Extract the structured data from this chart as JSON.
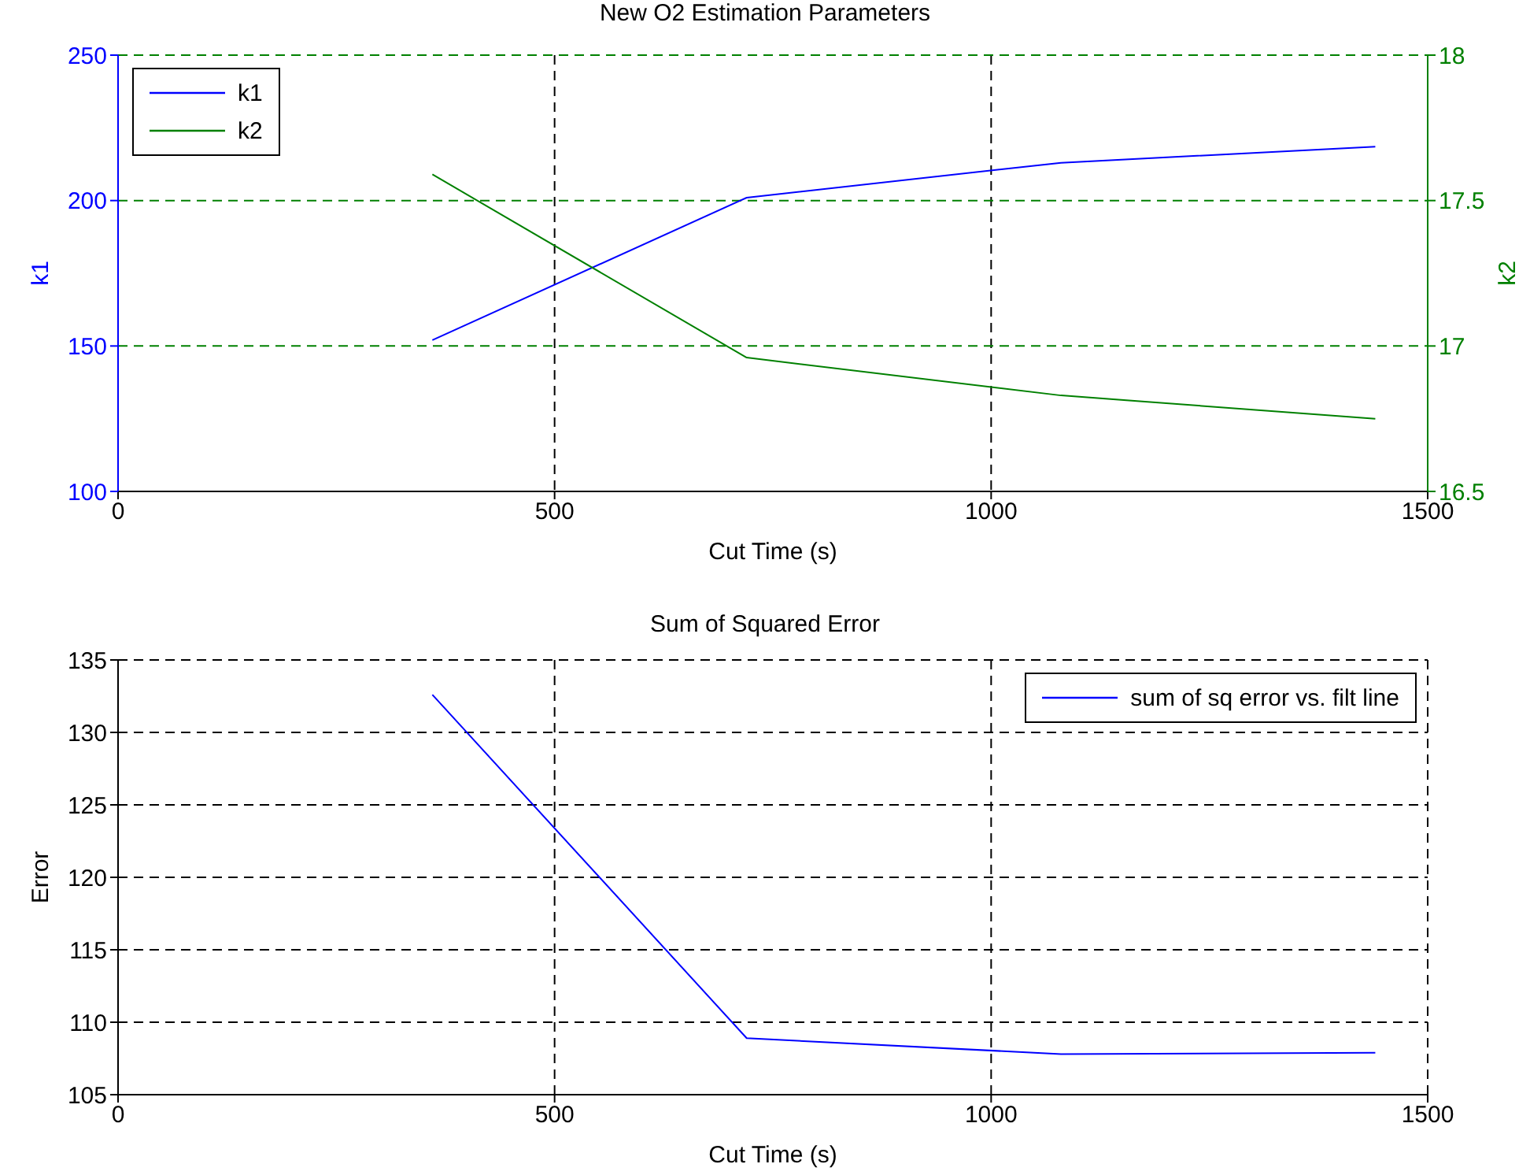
{
  "chart_data": [
    {
      "type": "line",
      "title": "New O2 Estimation Parameters",
      "xlabel": "Cut Time (s)",
      "ylabel": "k1",
      "y2label": "k2",
      "x": [
        360,
        720,
        1080,
        1440
      ],
      "series": [
        {
          "name": "k1",
          "color": "#0000ff",
          "values": [
            152,
            201,
            213,
            218.5
          ]
        },
        {
          "name": "k2",
          "color": "#008000",
          "values": [
            17.59,
            16.96,
            16.83,
            16.75
          ],
          "axis": "y2"
        }
      ],
      "xlim": [
        0,
        1500
      ],
      "xticks": [
        0,
        500,
        1000,
        1500
      ],
      "ylim": [
        100,
        250
      ],
      "yticks": [
        100,
        150,
        200,
        250
      ],
      "y2lim": [
        16.5,
        18
      ],
      "y2ticks": [
        16.5,
        17,
        17.5,
        18
      ],
      "grid": true,
      "legend": "top left"
    },
    {
      "type": "line",
      "title": "Sum of Squared Error",
      "xlabel": "Cut Time (s)",
      "ylabel": "Error",
      "x": [
        360,
        720,
        1080,
        1440
      ],
      "series": [
        {
          "name": "sum of sq error vs. filt line",
          "color": "#0000ff",
          "values": [
            132.6,
            108.9,
            107.8,
            107.9
          ]
        }
      ],
      "xlim": [
        0,
        1500
      ],
      "xticks": [
        0,
        500,
        1000,
        1500
      ],
      "ylim": [
        105,
        135
      ],
      "yticks": [
        105,
        110,
        115,
        120,
        125,
        130,
        135
      ],
      "grid": true,
      "legend": "top right"
    }
  ]
}
